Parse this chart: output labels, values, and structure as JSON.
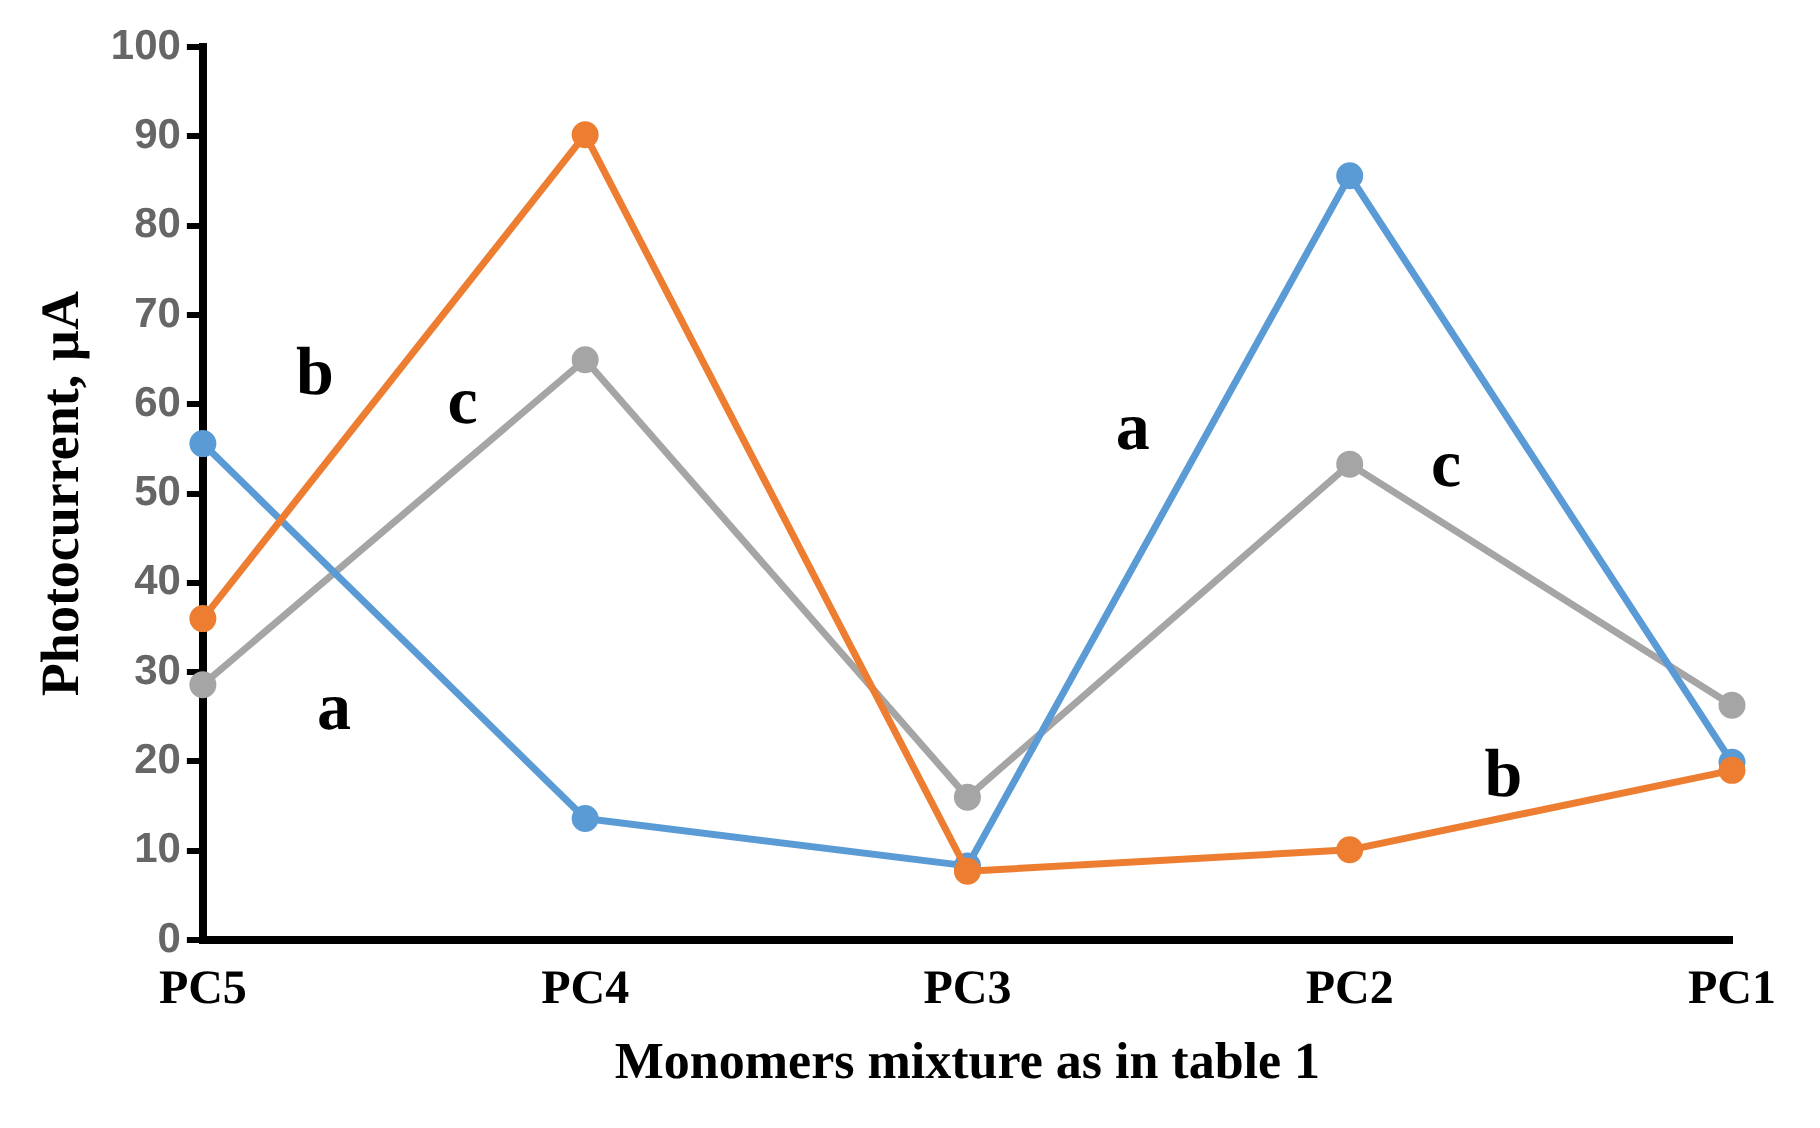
{
  "chart_data": {
    "type": "line",
    "xlabel": "Monomers mixture as in table 1",
    "ylabel": "Photocurrent, µA",
    "categories": [
      "PC5",
      "PC4",
      "PC3",
      "PC2",
      "PC1"
    ],
    "series": [
      {
        "name": "a",
        "color": "#5b9bd5",
        "values": [
          55.6,
          13.6,
          8.3,
          85.6,
          19.9
        ]
      },
      {
        "name": "b",
        "color": "#ed7d31",
        "values": [
          36.0,
          90.2,
          7.7,
          10.1,
          19.0
        ]
      },
      {
        "name": "c",
        "color": "#a5a5a5",
        "values": [
          28.6,
          65.0,
          16.0,
          53.3,
          26.3
        ]
      }
    ],
    "ylim": [
      0,
      100
    ],
    "yticks": [
      0,
      10,
      20,
      30,
      40,
      50,
      60,
      70,
      80,
      90,
      100
    ],
    "grid": false,
    "legend": false,
    "marker": "circle",
    "line_style": "solid"
  }
}
